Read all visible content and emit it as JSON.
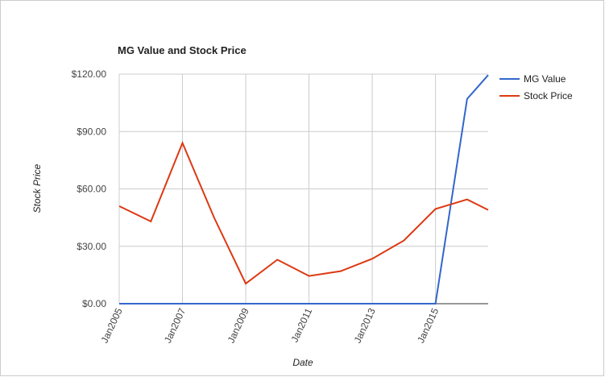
{
  "chart_data": {
    "type": "line",
    "title": "MG Value and Stock Price",
    "x_label": "Date",
    "y_label": "Stock Price",
    "x": [
      "2005-01",
      "2006-01",
      "2007-01",
      "2008-01",
      "2009-01",
      "2010-01",
      "2011-01",
      "2012-01",
      "2013-01",
      "2014-01",
      "2015-01",
      "2016-01",
      "2016-09"
    ],
    "series": [
      {
        "name": "MG Value",
        "color": "#3366cc",
        "values": [
          0,
          0,
          0,
          0,
          0,
          0,
          0,
          0,
          0,
          0,
          0,
          107,
          119.5
        ]
      },
      {
        "name": "Stock Price",
        "color": "#dc3912",
        "values": [
          51,
          43,
          84,
          45,
          10.5,
          23,
          14.5,
          17,
          23.5,
          33,
          49.5,
          54.5,
          49
        ]
      }
    ],
    "xlim": [
      "2005-01",
      "2016-09"
    ],
    "xticks": [
      {
        "value": "2005-01",
        "label": "Jan2005"
      },
      {
        "value": "2007-01",
        "label": "Jan2007"
      },
      {
        "value": "2009-01",
        "label": "Jan2009"
      },
      {
        "value": "2011-01",
        "label": "Jan2011"
      },
      {
        "value": "2013-01",
        "label": "Jan2013"
      },
      {
        "value": "2015-01",
        "label": "Jan2015"
      }
    ],
    "ylim": [
      0,
      120
    ],
    "yticks": [
      {
        "value": 0,
        "label": "$0.00"
      },
      {
        "value": 30,
        "label": "$30.00"
      },
      {
        "value": 60,
        "label": "$60.00"
      },
      {
        "value": 90,
        "label": "$90.00"
      },
      {
        "value": 120,
        "label": "$120.00"
      }
    ],
    "grid": true,
    "legend": "right"
  }
}
